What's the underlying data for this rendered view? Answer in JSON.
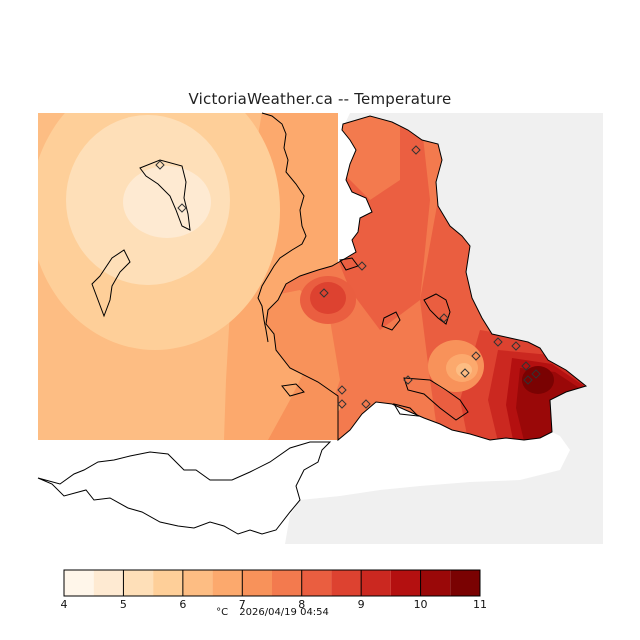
{
  "title": "VictoriaWeather.ca -- Temperature",
  "legend": {
    "unit": "°C",
    "timestamp": "2026/04/19 04:54",
    "ticks": [
      "4",
      "5",
      "6",
      "7",
      "8",
      "9",
      "10",
      "11"
    ],
    "range": [
      4,
      11
    ],
    "bins": [
      "#fff6ea",
      "#feead2",
      "#fedfb8",
      "#fecf99",
      "#fdbd83",
      "#fca96d",
      "#f8925a",
      "#f37a4e",
      "#ea5e40",
      "#dd4230",
      "#cb2820",
      "#b41010",
      "#9a0808",
      "#7a0202"
    ]
  },
  "colors": {
    "land_background": "#f0f0f0",
    "water": "#ffffff",
    "coastline": "#000000"
  },
  "stations": [
    {
      "marker": "diamond"
    },
    {
      "marker": "diamond"
    },
    {
      "marker": "diamond"
    },
    {
      "marker": "diamond"
    },
    {
      "marker": "diamond"
    },
    {
      "marker": "diamond"
    },
    {
      "marker": "diamond"
    },
    {
      "marker": "diamond"
    },
    {
      "marker": "diamond"
    },
    {
      "marker": "diamond"
    },
    {
      "marker": "diamond"
    },
    {
      "marker": "diamond"
    },
    {
      "marker": "diamond"
    },
    {
      "marker": "diamond"
    },
    {
      "marker": "diamond"
    },
    {
      "marker": "diamond"
    },
    {
      "marker": "diamond"
    }
  ]
}
